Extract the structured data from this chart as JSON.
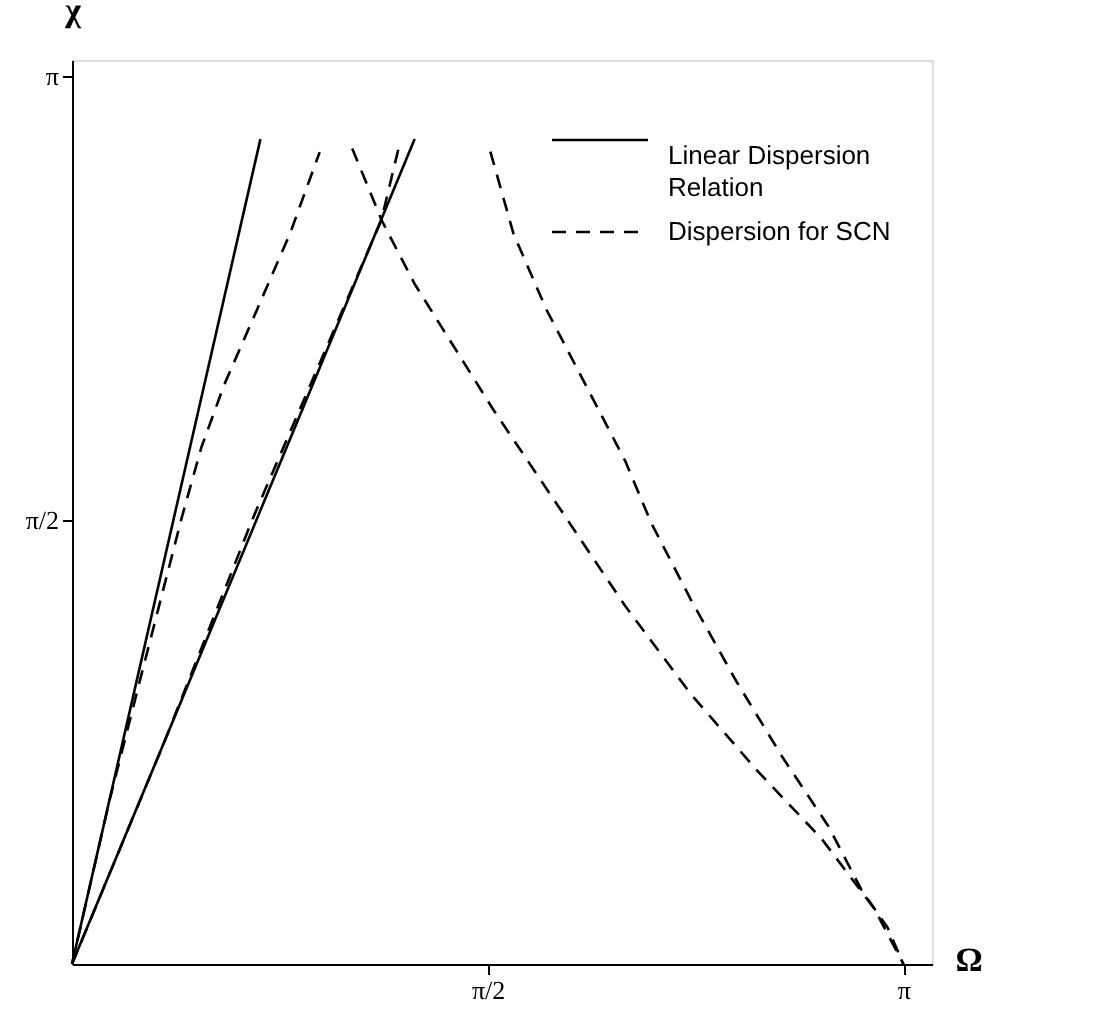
{
  "chart_data": {
    "type": "line",
    "xlabel": "Ω",
    "ylabel": "χ",
    "xlim": [
      0,
      3.25
    ],
    "ylim": [
      0,
      3.2
    ],
    "xticks": [
      {
        "value": 1.5708,
        "label": "π/2"
      },
      {
        "value": 3.1416,
        "label": "π"
      }
    ],
    "yticks": [
      {
        "value": 1.5708,
        "label": "π/2"
      },
      {
        "value": 3.1416,
        "label": "π"
      }
    ],
    "grid": false,
    "legend": "top right",
    "marker": "none",
    "series": [
      {
        "name": "Linear Dispersion Relation",
        "color": "#000000",
        "line_style": "solid",
        "x": [
          0,
          0.712
        ],
        "values": [
          0,
          2.92
        ]
      },
      {
        "color": "#000000",
        "line_style": "solid",
        "x": [
          0,
          1.295
        ],
        "values": [
          0,
          2.92
        ]
      },
      {
        "name": "Dispersion for SCN",
        "color": "#000000",
        "line_style": "dashed",
        "x": [
          0,
          0.141,
          0.268,
          0.415,
          0.489,
          0.575,
          0.7,
          0.824,
          0.936
        ],
        "values": [
          0,
          0.576,
          1.045,
          1.581,
          1.829,
          2.05,
          2.318,
          2.586,
          2.874
        ]
      },
      {
        "color": "#000000",
        "line_style": "dashed",
        "x": [
          0,
          0.345,
          0.685,
          1.169,
          1.234
        ],
        "values": [
          0,
          0.777,
          1.581,
          2.633,
          2.887
        ]
      },
      {
        "color": "#000000",
        "line_style": "dashed",
        "x": [
          1.059,
          1.171,
          1.295,
          1.444,
          1.593,
          1.866,
          2.09,
          2.338,
          2.586,
          2.834,
          3.032,
          3.142
        ],
        "values": [
          2.887,
          2.631,
          2.407,
          2.184,
          1.961,
          1.581,
          1.268,
          0.956,
          0.688,
          0.442,
          0.196,
          0
        ]
      },
      {
        "color": "#000000",
        "line_style": "dashed",
        "x": [
          1.581,
          1.668,
          1.792,
          1.941,
          2.09,
          2.189,
          2.338,
          2.511,
          2.685,
          2.859,
          2.983,
          3.082,
          3.142
        ],
        "values": [
          2.876,
          2.586,
          2.318,
          2.05,
          1.782,
          1.561,
          1.291,
          1.0,
          0.732,
          0.487,
          0.263,
          0.129,
          0
        ]
      }
    ]
  }
}
